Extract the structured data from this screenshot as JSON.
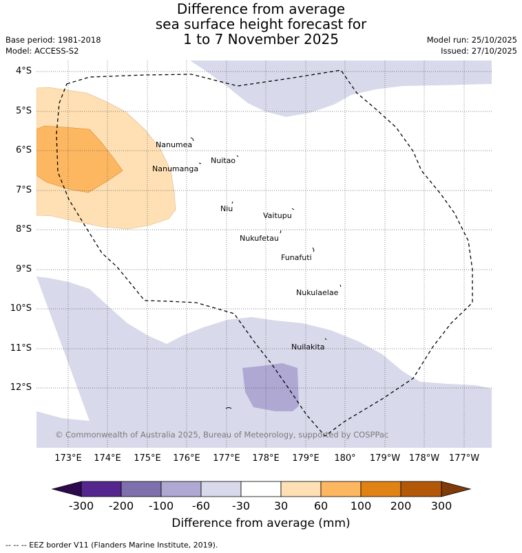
{
  "header": {
    "title_line1": "Difference from average",
    "title_line2": "sea surface height forecast for",
    "title_line3": "1 to 7 November 2025",
    "base_period": "Base period: 1981-2018",
    "model": "Model: ACCESS-S2",
    "model_run": "Model run: 25/10/2025",
    "issued": "Issued: 27/10/2025"
  },
  "map": {
    "lat_labels": [
      "4°S",
      "5°S",
      "6°S",
      "7°S",
      "8°S",
      "9°S",
      "10°S",
      "11°S",
      "12°S"
    ],
    "lon_labels": [
      "173°E",
      "174°E",
      "175°E",
      "176°E",
      "177°E",
      "178°E",
      "179°E",
      "180°",
      "179°W",
      "178°W",
      "177°W"
    ],
    "places": {
      "nanumea": "Nanumea",
      "nuitao": "Nuitao",
      "nanumanga": "Nanumanga",
      "niu": "Niu",
      "vaitupu": "Vaitupu",
      "nukufetau": "Nukufetau",
      "funafuti": "Funafuti",
      "nukulaelae": "Nukulaelae",
      "nuilakita": "Nuilakita"
    },
    "copyright": "© Commonwealth of Australia 2025, Bureau of Meteorology, supported by COSPPac"
  },
  "colorbar": {
    "ticks": [
      "-300",
      "-200",
      "-100",
      "-60",
      "-30",
      "30",
      "60",
      "100",
      "200",
      "300"
    ],
    "colors": {
      "below_min": "#2d0a4e",
      "b1": "#54278f",
      "b2": "#7f70ad",
      "b3": "#aea8d3",
      "b4": "#d8d9ea",
      "b5": "#ffffff",
      "b6": "#fee0b4",
      "b7": "#fdb761",
      "b8": "#e08214",
      "b9": "#b35806",
      "above_max": "#7f3b08"
    },
    "title": "Difference from average (mm)"
  },
  "footer": {
    "eez_note": "--  --  -- EEZ border V11 (Flanders Marine Institute, 2019)."
  }
}
